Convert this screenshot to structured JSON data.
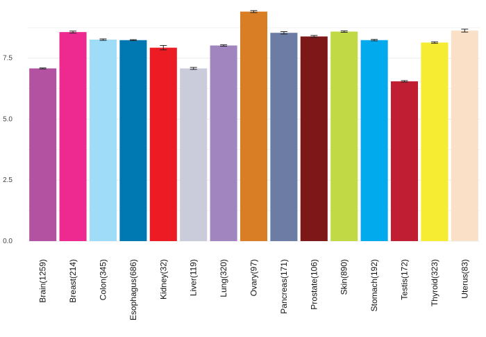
{
  "chart_data": {
    "type": "bar",
    "title": "",
    "xlabel": "",
    "ylabel": "",
    "ylim": [
      0,
      9.6
    ],
    "yticks": [
      0.0,
      2.5,
      5.0,
      7.5
    ],
    "ytick_labels": [
      "0.0",
      "2.5",
      "5.0",
      "7.5"
    ],
    "grid": true,
    "legend": "none",
    "categories": [
      "Brain(1259)",
      "Breast(214)",
      "Colon(345)",
      "Esophagus(686)",
      "Kidney(32)",
      "Liver(119)",
      "Lung(320)",
      "Ovary(97)",
      "Pancreas(171)",
      "Prostate(106)",
      "Skin(890)",
      "Stomach(192)",
      "Testis(172)",
      "Thyroid(323)",
      "Uterus(83)"
    ],
    "values": [
      7.08,
      8.57,
      8.26,
      8.24,
      7.93,
      7.08,
      8.02,
      9.41,
      8.54,
      8.39,
      8.59,
      8.24,
      6.55,
      8.14,
      8.63
    ],
    "errors": [
      0.02,
      0.04,
      0.03,
      0.02,
      0.09,
      0.04,
      0.03,
      0.04,
      0.05,
      0.04,
      0.03,
      0.03,
      0.03,
      0.03,
      0.06
    ],
    "colors": [
      "#B252A1",
      "#EE2A90",
      "#9EDCF8",
      "#0079B3",
      "#ED1C24",
      "#CACBDB",
      "#A085BF",
      "#DA7E25",
      "#6C7CA5",
      "#7E1718",
      "#C0D944",
      "#00AAEC",
      "#C01E32",
      "#F6EC32",
      "#F9E0C6"
    ]
  }
}
